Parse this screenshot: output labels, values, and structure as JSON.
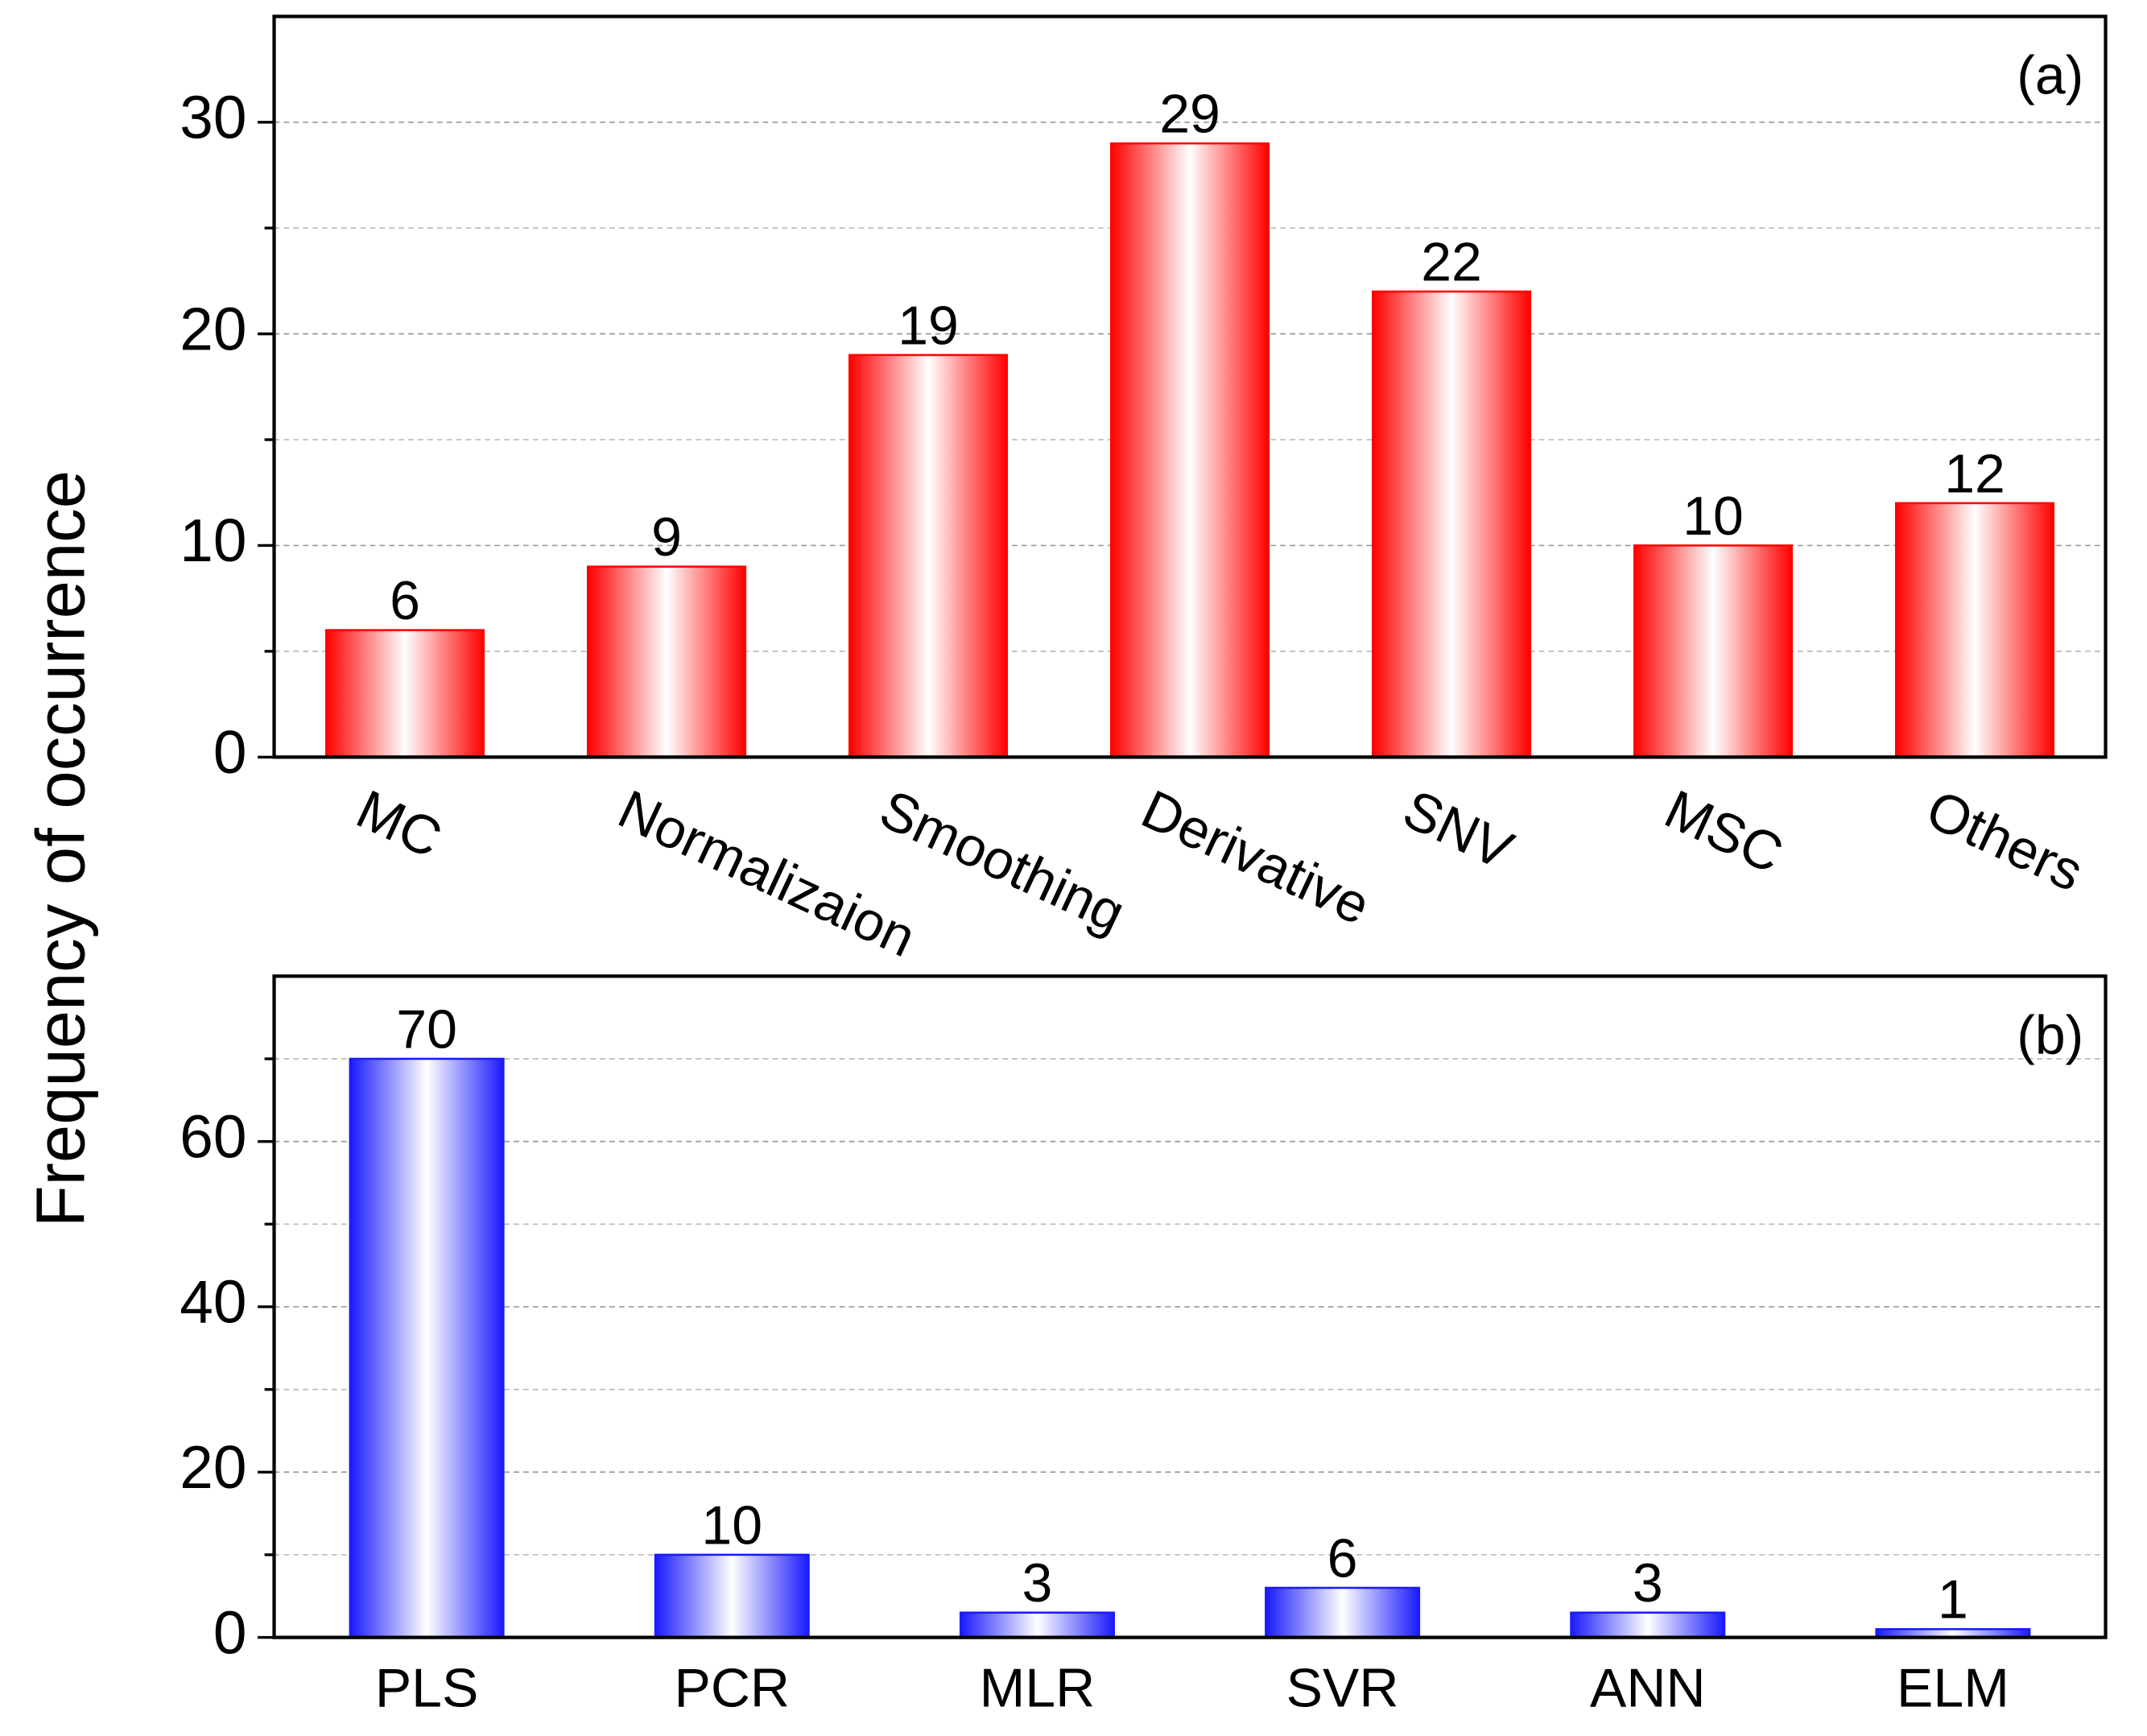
{
  "chart_data": [
    {
      "type": "bar",
      "label": "(a)",
      "ylabel": "Frequency of occurrence",
      "categories": [
        "MC",
        "Normalizaion",
        "Smoothing",
        "Derivative",
        "SNV",
        "MSC",
        "Others"
      ],
      "values": [
        6,
        9,
        19,
        29,
        22,
        10,
        12
      ],
      "color": "#ff0000",
      "ylim": [
        0,
        35
      ],
      "yticks": [
        0,
        10,
        20,
        30
      ],
      "yminor": [
        5,
        15,
        25
      ],
      "grid": true,
      "xtick_rotation": 25
    },
    {
      "type": "bar",
      "label": "(b)",
      "categories": [
        "PLS",
        "PCR",
        "MLR",
        "SVR",
        "ANN",
        "ELM"
      ],
      "values": [
        70,
        10,
        3,
        6,
        3,
        1
      ],
      "color": "#1a1aff",
      "ylim": [
        0,
        80
      ],
      "yticks": [
        0,
        20,
        40,
        60
      ],
      "yminor": [
        10,
        30,
        50,
        70
      ],
      "grid": true,
      "xtick_rotation": 0
    }
  ]
}
